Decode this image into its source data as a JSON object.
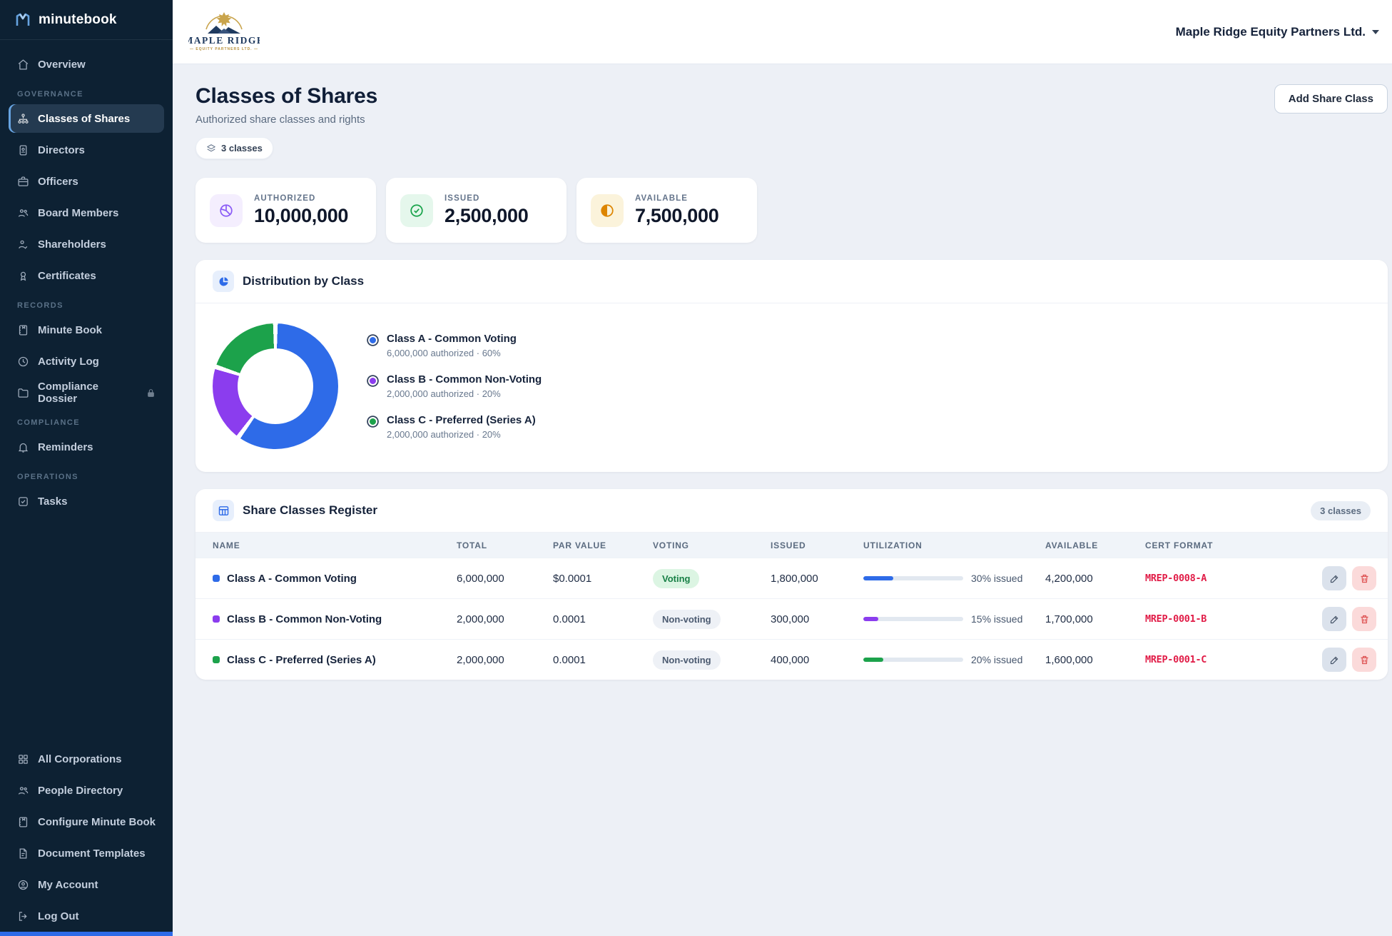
{
  "brand": {
    "name": "minutebook"
  },
  "sidebar": {
    "sections": [
      {
        "items": [
          {
            "label": "Overview"
          }
        ]
      },
      {
        "header": "Governance",
        "items": [
          {
            "label": "Classes of Shares"
          },
          {
            "label": "Directors"
          },
          {
            "label": "Officers"
          },
          {
            "label": "Board Members"
          },
          {
            "label": "Shareholders"
          },
          {
            "label": "Certificates"
          }
        ]
      },
      {
        "header": "Records",
        "items": [
          {
            "label": "Minute Book"
          },
          {
            "label": "Activity Log"
          },
          {
            "label": "Compliance Dossier"
          }
        ]
      },
      {
        "header": "Compliance",
        "items": [
          {
            "label": "Reminders"
          }
        ]
      },
      {
        "header": "Operations",
        "items": [
          {
            "label": "Tasks"
          }
        ]
      }
    ],
    "footer": [
      {
        "label": "All Corporations"
      },
      {
        "label": "People Directory"
      },
      {
        "label": "Configure Minute Book"
      },
      {
        "label": "Document Templates"
      },
      {
        "label": "My Account"
      },
      {
        "label": "Log Out"
      }
    ]
  },
  "header": {
    "logo_line1": "MAPLE RIDGE",
    "logo_line2": "— EQUITY PARTNERS LTD. —",
    "company_selector": "Maple Ridge Equity Partners Ltd."
  },
  "page": {
    "title": "Classes of Shares",
    "subtitle": "Authorized share classes and rights",
    "count_badge": "3 classes",
    "add_button": "Add Share Class"
  },
  "stats": [
    {
      "label": "Authorized",
      "value": "10,000,000",
      "accent": "#8b5cf6",
      "bg": "#f4eefe"
    },
    {
      "label": "Issued",
      "value": "2,500,000",
      "accent": "#18a34a",
      "bg": "#e5f7ec"
    },
    {
      "label": "Available",
      "value": "7,500,000",
      "accent": "#dd8500",
      "bg": "#fbf3db"
    }
  ],
  "distribution": {
    "title": "Distribution by Class",
    "legend": [
      {
        "title": "Class A - Common Voting",
        "sub": "6,000,000 authorized · 60%",
        "color": "#2e6be8"
      },
      {
        "title": "Class B - Common Non-Voting",
        "sub": "2,000,000 authorized · 20%",
        "color": "#8b3dee"
      },
      {
        "title": "Class C - Preferred (Series A)",
        "sub": "2,000,000 authorized · 20%",
        "color": "#1ca24b"
      }
    ]
  },
  "chart_data": {
    "type": "pie",
    "donut": true,
    "title": "Distribution by Class",
    "labels": [
      "Class A - Common Voting",
      "Class B - Common Non-Voting",
      "Class C - Preferred (Series A)"
    ],
    "values": [
      60,
      20,
      20
    ],
    "authorized_shares": [
      6000000,
      2000000,
      2000000
    ],
    "colors": [
      "#2e6be8",
      "#8b3dee",
      "#1ca24b"
    ],
    "legend_position": "right"
  },
  "register": {
    "title": "Share Classes Register",
    "badge": "3 classes",
    "columns": [
      "Name",
      "Total",
      "Par Value",
      "Voting",
      "Issued",
      "Utilization",
      "Available",
      "Cert Format",
      ""
    ],
    "rows": [
      {
        "name": "Class A - Common Voting",
        "swatch": "#2e6be8",
        "total": "6,000,000",
        "par": "$0.0001",
        "voting": "Voting",
        "issued": "1,800,000",
        "util_pct": 30,
        "util_label": "30% issued",
        "available": "4,200,000",
        "cert": "MREP-0008-A"
      },
      {
        "name": "Class B - Common Non-Voting",
        "swatch": "#8b3dee",
        "total": "2,000,000",
        "par": "0.0001",
        "voting": "Non-voting",
        "issued": "300,000",
        "util_pct": 15,
        "util_label": "15% issued",
        "available": "1,700,000",
        "cert": "MREP-0001-B"
      },
      {
        "name": "Class C - Preferred (Series A)",
        "swatch": "#1ca24b",
        "total": "2,000,000",
        "par": "0.0001",
        "voting": "Non-voting",
        "issued": "400,000",
        "util_pct": 20,
        "util_label": "20% issued",
        "available": "1,600,000",
        "cert": "MREP-0001-C"
      }
    ]
  }
}
